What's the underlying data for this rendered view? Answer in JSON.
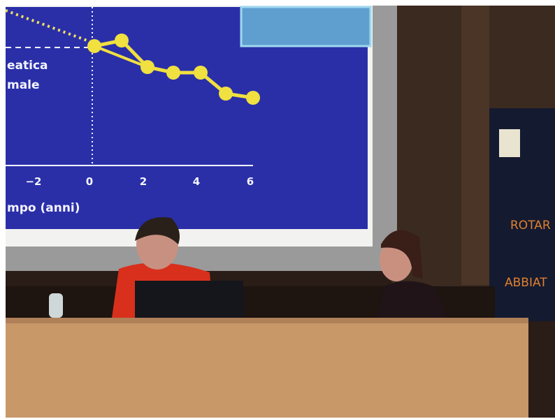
{
  "screen": {
    "labels": [
      "eatica",
      "male"
    ],
    "axis_ticks": [
      "−2",
      "0",
      "2",
      "4",
      "6"
    ],
    "axis_title": "mpo (anni)"
  },
  "banner": {
    "lines": [
      "ROTAR",
      "ABBIAT"
    ]
  }
}
